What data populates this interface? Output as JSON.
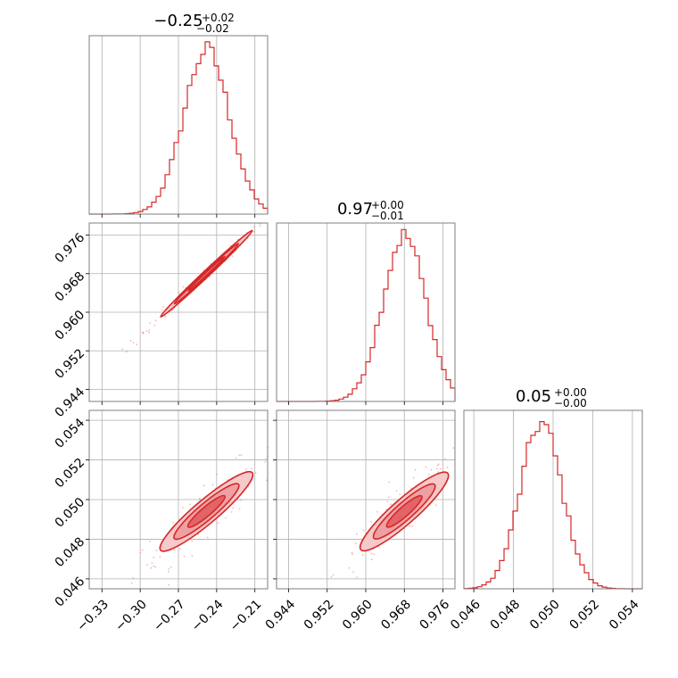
{
  "colors": {
    "accent": "#d62728",
    "grid": "#b0b0b0",
    "frame": "#7f7f7f"
  },
  "chart_data": {
    "type": "corner",
    "grid": true,
    "parameters": [
      {
        "range": [
          -0.34,
          -0.2
        ],
        "ticks": [
          -0.33,
          -0.3,
          -0.27,
          -0.24,
          -0.21
        ],
        "tick_labels": [
          "−0.33",
          "−0.30",
          "−0.27",
          "−0.24",
          "−0.21"
        ],
        "title": {
          "median": "−0.25",
          "plus": "+0.02",
          "minus": "−0.02"
        },
        "hist": {
          "center": -0.248,
          "sigma": 0.018,
          "peak": 0.92
        }
      },
      {
        "range": [
          0.9415,
          0.9785
        ],
        "ticks": [
          0.944,
          0.952,
          0.96,
          0.968,
          0.976
        ],
        "tick_labels": [
          "0.944",
          "0.952",
          "0.960",
          "0.968",
          "0.976"
        ],
        "title": {
          "median": "0.97",
          "plus": "+0.00",
          "minus": "−0.01"
        },
        "hist": {
          "center": 0.968,
          "sigma": 0.0045,
          "peak": 0.93
        }
      },
      {
        "range": [
          0.0455,
          0.0545
        ],
        "ticks": [
          0.046,
          0.048,
          0.05,
          0.052,
          0.054
        ],
        "tick_labels": [
          "0.046",
          "0.048",
          "0.050",
          "0.052",
          "0.054"
        ],
        "title": {
          "median": "0.05",
          "plus": "+0.00",
          "minus": "−0.00"
        },
        "hist": {
          "center": 0.0494,
          "sigma": 0.00105,
          "peak": 0.93
        }
      }
    ],
    "hist_bins": 40,
    "contour_levels": 3
  }
}
